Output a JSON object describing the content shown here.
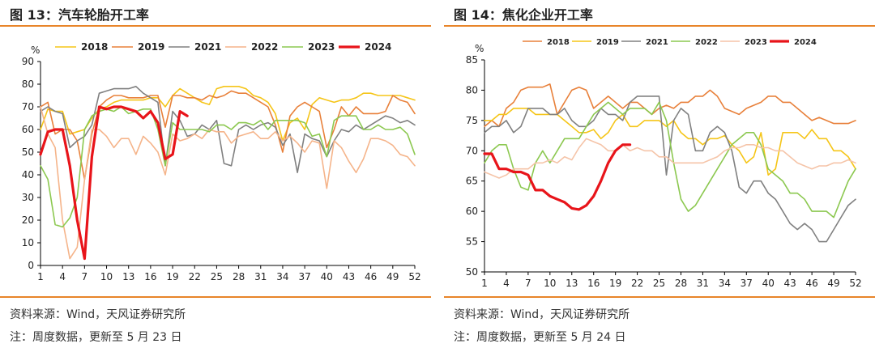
{
  "left": {
    "title": "图 13：汽车轮胎开工率",
    "source": "资料来源：Wind，天风证券研究所",
    "note": "注：周度数据，更新至 5 月 23 日"
  },
  "right": {
    "title": "图 14：焦化企业开工率",
    "source": "资料来源：Wind，天风证券研究所",
    "note": "注：周度数据，更新至 5 月 24 日"
  },
  "chart_data": [
    {
      "type": "line",
      "title": "图 13：汽车轮胎开工率",
      "ylabel": "%",
      "ylim": [
        0,
        90
      ],
      "yticks": [
        0,
        10,
        20,
        30,
        40,
        50,
        60,
        70,
        80,
        90
      ],
      "xlim": [
        1,
        52
      ],
      "xticks": [
        1,
        4,
        7,
        10,
        13,
        16,
        19,
        22,
        25,
        28,
        31,
        34,
        37,
        40,
        43,
        46,
        49,
        52
      ],
      "legend_position": "top",
      "grid": false,
      "series": [
        {
          "name": "2018",
          "color": "#f5c518",
          "width": 1.6,
          "values": [
            60,
            69,
            68,
            68,
            58,
            59,
            60,
            65,
            69,
            70,
            72,
            73,
            73,
            73,
            73,
            74,
            74,
            70,
            75,
            78,
            76,
            74,
            72,
            71,
            78,
            79,
            79,
            79,
            78,
            75,
            74,
            72,
            67,
            55,
            63,
            65,
            60,
            71,
            74,
            73,
            72,
            73,
            73,
            74,
            76,
            76,
            75,
            75,
            75,
            75,
            74,
            73
          ]
        },
        {
          "name": "2019",
          "color": "#e8803a",
          "width": 1.6,
          "values": [
            70,
            72,
            58,
            60,
            60,
            55,
            38,
            58,
            70,
            73,
            75,
            75,
            74,
            74,
            74,
            75,
            75,
            61,
            75,
            75,
            74,
            74,
            73,
            75,
            74,
            75,
            77,
            76,
            76,
            74,
            72,
            70,
            62,
            50,
            66,
            70,
            72,
            70,
            68,
            52,
            60,
            70,
            66,
            70,
            67,
            67,
            67,
            68,
            75,
            73,
            72,
            67
          ]
        },
        {
          "name": "2021",
          "color": "#808080",
          "width": 1.6,
          "values": [
            68,
            70,
            68,
            67,
            52,
            55,
            57,
            62,
            76,
            77,
            78,
            78,
            78,
            79,
            76,
            74,
            72,
            44,
            68,
            64,
            57,
            58,
            62,
            60,
            64,
            45,
            44,
            60,
            62,
            60,
            62,
            63,
            61,
            53,
            58,
            41,
            58,
            56,
            55,
            48,
            55,
            60,
            59,
            62,
            60,
            62,
            64,
            66,
            65,
            63,
            64,
            62
          ]
        },
        {
          "name": "2022",
          "color": "#f5b48a",
          "width": 1.6,
          "values": [
            70,
            58,
            52,
            20,
            3,
            8,
            38,
            60,
            60,
            57,
            52,
            56,
            56,
            49,
            57,
            54,
            50,
            40,
            58,
            55,
            56,
            58,
            56,
            60,
            59,
            59,
            54,
            57,
            58,
            59,
            56,
            56,
            59,
            55,
            57,
            54,
            50,
            55,
            54,
            34,
            55,
            52,
            46,
            41,
            47,
            56,
            56,
            55,
            53,
            49,
            48,
            44
          ]
        },
        {
          "name": "2023",
          "color": "#8cc850",
          "width": 1.6,
          "values": [
            44,
            38,
            18,
            17,
            21,
            30,
            60,
            66,
            68,
            69,
            68,
            70,
            67,
            68,
            69,
            69,
            60,
            44,
            63,
            60,
            60,
            60,
            60,
            59,
            62,
            62,
            60,
            63,
            63,
            62,
            64,
            60,
            64,
            64,
            64,
            64,
            63,
            57,
            58,
            48,
            64,
            66,
            66,
            66,
            60,
            60,
            62,
            60,
            60,
            61,
            58,
            49
          ]
        },
        {
          "name": "2024",
          "color": "#e8141a",
          "width": 3.2,
          "values": [
            49,
            59,
            60,
            60,
            44,
            20,
            3,
            48,
            70,
            69,
            70,
            70,
            69,
            68,
            65,
            68,
            63,
            47,
            49,
            68,
            66
          ]
        }
      ]
    },
    {
      "type": "line",
      "title": "图 14：焦化企业开工率",
      "ylabel": "%",
      "ylim": [
        50,
        85
      ],
      "yticks": [
        50,
        55,
        60,
        65,
        70,
        75,
        80,
        85
      ],
      "xlim": [
        1,
        52
      ],
      "xticks": [
        1,
        4,
        7,
        10,
        13,
        16,
        19,
        22,
        25,
        28,
        31,
        34,
        37,
        40,
        43,
        46,
        49,
        52
      ],
      "legend_position": "top",
      "grid": false,
      "series": [
        {
          "name": "2018",
          "color": "#e8803a",
          "width": 1.6,
          "values": [
            74,
            75,
            74,
            77,
            78,
            80,
            80.5,
            80.5,
            80.5,
            81,
            76,
            78,
            80,
            80.5,
            80,
            77,
            78,
            79,
            78,
            77,
            78,
            78,
            77,
            76,
            77,
            77.5,
            77,
            78,
            78,
            79,
            79,
            80,
            79,
            77,
            76.5,
            76,
            77,
            77.5,
            78,
            79,
            79,
            78,
            78,
            77,
            76,
            75,
            75.5,
            75,
            74.5,
            74.5,
            74.5,
            75
          ]
        },
        {
          "name": "2019",
          "color": "#f5c518",
          "width": 1.6,
          "values": [
            75,
            75,
            76,
            76,
            77,
            77,
            77,
            76,
            76,
            76,
            76,
            75,
            74,
            73,
            73,
            73.5,
            72,
            73,
            75,
            76,
            74,
            74,
            75,
            75,
            75,
            74,
            75,
            73,
            72,
            72,
            71,
            72,
            72,
            72.5,
            71,
            70,
            68,
            69,
            73,
            66,
            67,
            73,
            73,
            73,
            72,
            73.5,
            72,
            72,
            70,
            70,
            69,
            67
          ]
        },
        {
          "name": "2021",
          "color": "#808080",
          "width": 1.6,
          "values": [
            73,
            74,
            74,
            75,
            73,
            74,
            77,
            77,
            77,
            76,
            76,
            77,
            75,
            74,
            74,
            75,
            77,
            76,
            76,
            75,
            78,
            79,
            79,
            79,
            79,
            66,
            75,
            77,
            76,
            70,
            70,
            73,
            74,
            73,
            70,
            64,
            63,
            65,
            65,
            63,
            62,
            60,
            58,
            57,
            58,
            57,
            55,
            55,
            57,
            59,
            61,
            62
          ]
        },
        {
          "name": "2022",
          "color": "#8cc850",
          "width": 1.6,
          "values": [
            68,
            70,
            71,
            71,
            67,
            64,
            63.5,
            68,
            70,
            68,
            70,
            72,
            72,
            72,
            74,
            76,
            77,
            78,
            77,
            76,
            77,
            77,
            77,
            76,
            78,
            75,
            68,
            62,
            60,
            61,
            63,
            65,
            67,
            69,
            71,
            72,
            73,
            73,
            71,
            67,
            66,
            65,
            63,
            63,
            62,
            60,
            60,
            60,
            59,
            62,
            65,
            67
          ]
        },
        {
          "name": "2023",
          "color": "#f5c4a8",
          "width": 1.6,
          "values": [
            66.5,
            66,
            65.5,
            66,
            67,
            67,
            67,
            68,
            68,
            68.5,
            68,
            69,
            68.5,
            70.5,
            72,
            71.5,
            71,
            70,
            70,
            71,
            70,
            70.5,
            70,
            70,
            69,
            69,
            68,
            68,
            68,
            68,
            68,
            68.5,
            69,
            70,
            70.5,
            70.5,
            71,
            71,
            70.5,
            70.5,
            70,
            70,
            69,
            68,
            67.5,
            67,
            67.5,
            67.5,
            68,
            68,
            68.5,
            68
          ]
        },
        {
          "name": "2024",
          "color": "#e8141a",
          "width": 3.2,
          "values": [
            69.5,
            69.5,
            67,
            67,
            66.5,
            66.5,
            66,
            63.5,
            63.5,
            62.5,
            62,
            61.5,
            60.5,
            60.3,
            61,
            62.5,
            65,
            68,
            70,
            71,
            71
          ]
        }
      ]
    }
  ]
}
